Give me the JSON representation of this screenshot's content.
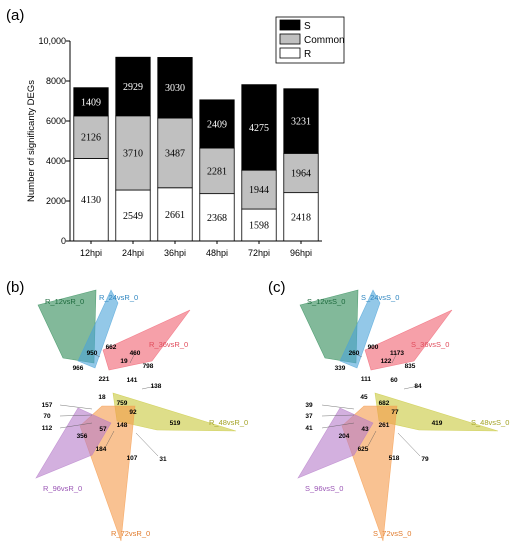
{
  "panels": {
    "a": "(a)",
    "b": "(b)",
    "c": "(c)"
  },
  "chart_data": [
    {
      "type": "bar",
      "stacked": true,
      "panel": "(a)",
      "ylabel": "Number of significanty DEGs",
      "ylim": [
        0,
        10000
      ],
      "yticks": [
        0,
        2000,
        4000,
        6000,
        8000,
        10000
      ],
      "ytick_labels": [
        "0",
        "2000",
        "4000",
        "6000",
        "8000",
        "10,000"
      ],
      "categories": [
        "12hpi",
        "24hpi",
        "36hpi",
        "48hpi",
        "72hpi",
        "96hpi"
      ],
      "legend_position": "top-right",
      "series": [
        {
          "name": "R",
          "color": "#ffffff",
          "values": [
            4130,
            2549,
            2661,
            2368,
            1598,
            2418
          ]
        },
        {
          "name": "Common",
          "color": "#c0c0c0",
          "values": [
            2126,
            3710,
            3487,
            2281,
            1944,
            1964
          ]
        },
        {
          "name": "S",
          "color": "#000000",
          "values": [
            1409,
            2929,
            3030,
            2409,
            4275,
            3231
          ]
        }
      ]
    },
    {
      "type": "venn",
      "panel": "(b)",
      "sets": [
        {
          "name": "R_12vsR_0",
          "color": "#2e8b57"
        },
        {
          "name": "R_24vsR_0",
          "color": "#4ba3d9"
        },
        {
          "name": "R_36vsR_0",
          "color": "#f06070"
        },
        {
          "name": "R_48vsR_0",
          "color": "#c8c83a"
        },
        {
          "name": "R_72vsR_0",
          "color": "#f59a4a"
        },
        {
          "name": "R_96vsR_0",
          "color": "#b57cc9"
        }
      ],
      "region_values": [
        "966",
        "950",
        "662",
        "460",
        "19",
        "798",
        "221",
        "141",
        "138",
        "18",
        "759",
        "92",
        "519",
        "157",
        "70",
        "112",
        "57",
        "148",
        "356",
        "184",
        "107",
        "31"
      ]
    },
    {
      "type": "venn",
      "panel": "(c)",
      "sets": [
        {
          "name": "S_12vsS_0",
          "color": "#2e8b57"
        },
        {
          "name": "S_24vsS_0",
          "color": "#4ba3d9"
        },
        {
          "name": "S_36vsS_0",
          "color": "#f06070"
        },
        {
          "name": "S_48vsS_0",
          "color": "#c8c83a"
        },
        {
          "name": "S_72vsS_0",
          "color": "#f59a4a"
        },
        {
          "name": "S_96vsS_0",
          "color": "#b57cc9"
        }
      ],
      "region_values": [
        "339",
        "260",
        "900",
        "1173",
        "122",
        "835",
        "111",
        "60",
        "84",
        "45",
        "682",
        "77",
        "419",
        "39",
        "37",
        "41",
        "43",
        "261",
        "204",
        "625",
        "518",
        "79"
      ]
    }
  ]
}
